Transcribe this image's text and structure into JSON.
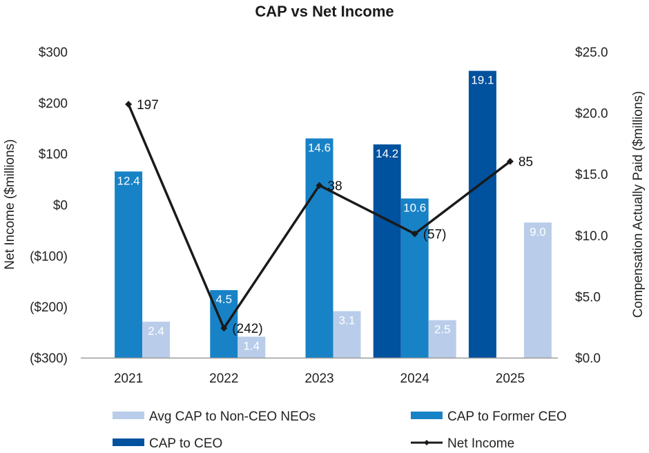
{
  "chart_data": {
    "type": "bar",
    "title": "CAP vs Net Income",
    "xlabel": "",
    "ylabel_left": "Net Income ($millions)",
    "ylabel_right": "Compensation Actually Paid ($millions)",
    "categories": [
      "2021",
      "2022",
      "2023",
      "2024",
      "2025"
    ],
    "y_left": {
      "range": [
        -300,
        300
      ],
      "ticks": [
        300,
        200,
        100,
        0,
        -100,
        -200,
        -300
      ],
      "tick_labels": [
        "$300",
        "$200",
        "$100",
        "$0",
        "($100)",
        "($200)",
        "($300)"
      ]
    },
    "y_right": {
      "range": [
        0,
        25
      ],
      "ticks": [
        25,
        20,
        15,
        10,
        5,
        0
      ],
      "tick_labels": [
        "$25.0",
        "$20.0",
        "$15.0",
        "$10.0",
        "$5.0",
        "$0.0"
      ]
    },
    "grid": false,
    "legend_position": "bottom",
    "series": [
      {
        "name": "CAP to CEO",
        "type": "bar",
        "axis": "right",
        "color": "#00519E",
        "values": [
          null,
          null,
          null,
          14.2,
          19.1
        ],
        "labels": [
          "",
          "",
          "",
          "14.2",
          "19.1"
        ]
      },
      {
        "name": "CAP to Former CEO",
        "type": "bar",
        "axis": "right",
        "color": "#1882C6",
        "values": [
          12.4,
          4.5,
          14.6,
          10.6,
          null
        ],
        "labels": [
          "12.4",
          "4.5",
          "14.6",
          "10.6",
          ""
        ]
      },
      {
        "name": "Avg CAP to Non-CEO NEOs",
        "type": "bar",
        "axis": "right",
        "color": "#B9CDEA",
        "values": [
          2.4,
          1.4,
          3.1,
          2.5,
          9.0
        ],
        "labels": [
          "2.4",
          "1.4",
          "3.1",
          "2.5",
          "9.0"
        ]
      },
      {
        "name": "Net Income",
        "type": "line",
        "axis": "left",
        "color": "#1a1a1a",
        "values": [
          197,
          -242,
          38,
          -57,
          85
        ],
        "labels": [
          "197",
          "(242)",
          "38",
          "(57)",
          "85"
        ]
      }
    ],
    "legend": [
      {
        "name": "Avg CAP to Non-CEO NEOs",
        "kind": "bar",
        "color": "#B9CDEA"
      },
      {
        "name": "CAP to Former CEO",
        "kind": "bar",
        "color": "#1882C6"
      },
      {
        "name": "CAP to CEO",
        "kind": "bar",
        "color": "#00519E"
      },
      {
        "name": "Net Income",
        "kind": "line",
        "color": "#1a1a1a"
      }
    ]
  }
}
